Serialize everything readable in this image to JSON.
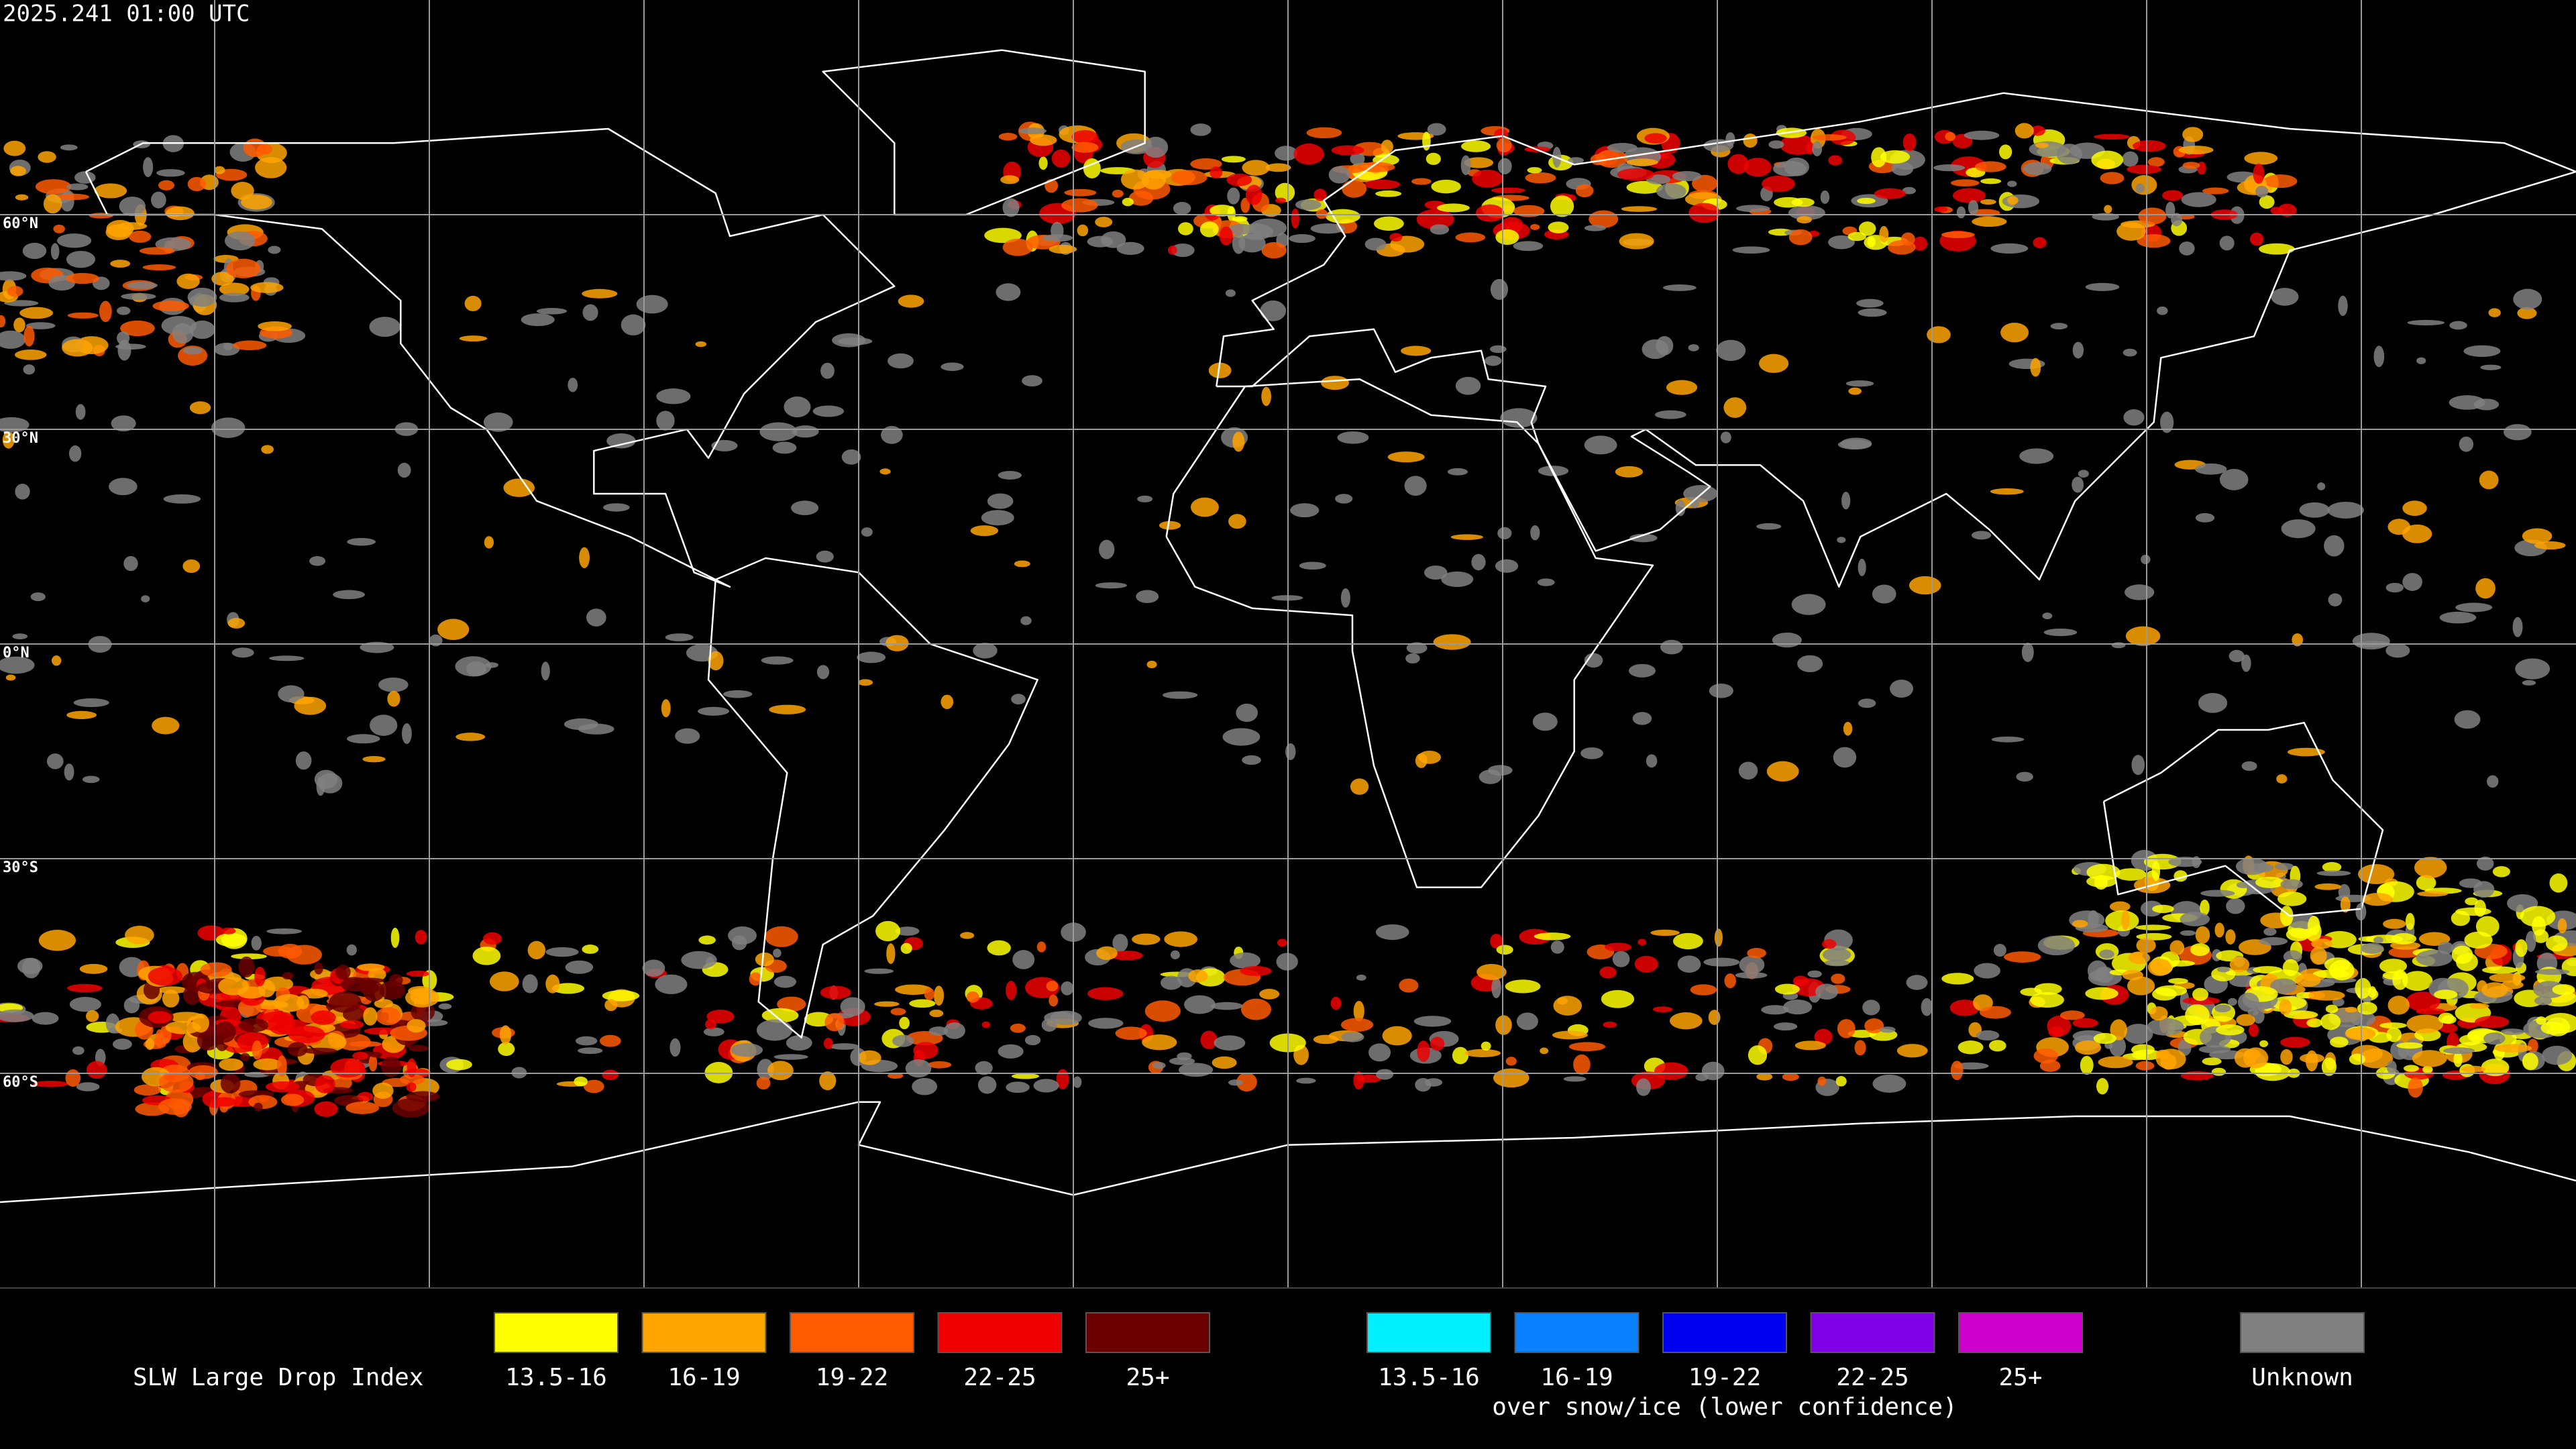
{
  "header": {
    "timestamp": "2025.241 01:00 UTC"
  },
  "latitude_labels": [
    "60°N",
    "30°N",
    "0°N",
    "30°S",
    "60°S"
  ],
  "legend": {
    "title": "SLW Large Drop Index",
    "groups": [
      {
        "items": [
          {
            "label": "13.5-16",
            "color": "#ffff00"
          },
          {
            "label": "16-19",
            "color": "#ffa500"
          },
          {
            "label": "19-22",
            "color": "#ff5a00"
          },
          {
            "label": "22-25",
            "color": "#ee0000"
          },
          {
            "label": "25+",
            "color": "#6b0000"
          }
        ]
      },
      {
        "items": [
          {
            "label": "13.5-16",
            "color": "#00f0ff"
          },
          {
            "label": "16-19",
            "color": "#0a82ff"
          },
          {
            "label": "19-22",
            "color": "#0000f0"
          },
          {
            "label": "22-25",
            "color": "#8000e6"
          },
          {
            "label": "25+",
            "color": "#cc00cc"
          }
        ],
        "note": "over snow/ice (lower confidence)"
      },
      {
        "items": [
          {
            "label": "Unknown",
            "color": "#808080"
          }
        ]
      }
    ]
  }
}
